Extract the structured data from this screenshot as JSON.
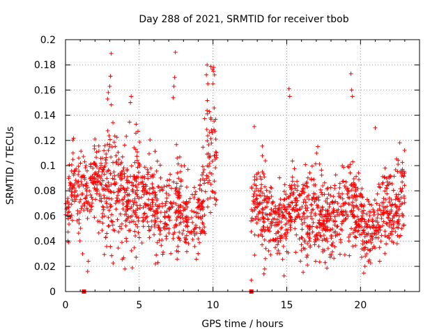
{
  "chart_data": {
    "type": "scatter",
    "title": "Day 288 of 2021, SRMTID for receiver tbob",
    "xlabel": "GPS time / hours",
    "ylabel": "SRMTID / TECUs",
    "xlim": [
      0,
      24
    ],
    "ylim": [
      0,
      0.2
    ],
    "grid": true,
    "marker_color": "#ff0000",
    "x_ticks": [
      {
        "value": 0,
        "label": "0"
      },
      {
        "value": 5,
        "label": "5"
      },
      {
        "value": 10,
        "label": "10"
      },
      {
        "value": 15,
        "label": "15"
      },
      {
        "value": 20,
        "label": "20"
      }
    ],
    "y_ticks": [
      {
        "value": 0,
        "label": "0"
      },
      {
        "value": 0.02,
        "label": "0.02"
      },
      {
        "value": 0.04,
        "label": "0.04"
      },
      {
        "value": 0.06,
        "label": "0.06"
      },
      {
        "value": 0.08,
        "label": "0.08"
      },
      {
        "value": 0.1,
        "label": "0.1"
      },
      {
        "value": 0.12,
        "label": "0.12"
      },
      {
        "value": 0.14,
        "label": "0.14"
      },
      {
        "value": 0.16,
        "label": "0.16"
      },
      {
        "value": 0.18,
        "label": "0.18"
      },
      {
        "value": 0.2,
        "label": "0.2"
      }
    ],
    "zero_markers": [
      {
        "x": 1.25,
        "y": 0
      },
      {
        "x": 12.6,
        "y": 0
      }
    ],
    "segments": [
      {
        "x_start": 0.0,
        "x_end": 10.25,
        "count": 900,
        "envelope": [
          [
            0.0,
            0.072,
            0.016
          ],
          [
            0.5,
            0.085,
            0.018
          ],
          [
            1.0,
            0.082,
            0.018
          ],
          [
            1.5,
            0.085,
            0.018
          ],
          [
            2.0,
            0.09,
            0.02
          ],
          [
            2.5,
            0.085,
            0.022
          ],
          [
            3.0,
            0.08,
            0.028
          ],
          [
            3.5,
            0.082,
            0.025
          ],
          [
            4.0,
            0.072,
            0.022
          ],
          [
            4.5,
            0.078,
            0.025
          ],
          [
            5.0,
            0.078,
            0.022
          ],
          [
            5.5,
            0.07,
            0.02
          ],
          [
            6.0,
            0.068,
            0.018
          ],
          [
            6.5,
            0.064,
            0.018
          ],
          [
            7.0,
            0.066,
            0.02
          ],
          [
            7.5,
            0.07,
            0.025
          ],
          [
            8.0,
            0.062,
            0.018
          ],
          [
            8.5,
            0.062,
            0.017
          ],
          [
            9.0,
            0.064,
            0.018
          ],
          [
            9.5,
            0.085,
            0.03
          ],
          [
            10.0,
            0.115,
            0.03
          ],
          [
            10.25,
            0.1,
            0.025
          ]
        ]
      },
      {
        "x_start": 12.55,
        "x_end": 23.0,
        "count": 950,
        "envelope": [
          [
            12.55,
            0.07,
            0.015
          ],
          [
            13.0,
            0.075,
            0.018
          ],
          [
            13.5,
            0.065,
            0.02
          ],
          [
            14.0,
            0.055,
            0.015
          ],
          [
            14.5,
            0.055,
            0.015
          ],
          [
            15.0,
            0.06,
            0.016
          ],
          [
            15.5,
            0.07,
            0.02
          ],
          [
            16.0,
            0.062,
            0.02
          ],
          [
            16.5,
            0.06,
            0.018
          ],
          [
            17.0,
            0.065,
            0.022
          ],
          [
            17.5,
            0.055,
            0.018
          ],
          [
            18.0,
            0.058,
            0.018
          ],
          [
            18.5,
            0.062,
            0.02
          ],
          [
            19.0,
            0.07,
            0.02
          ],
          [
            19.5,
            0.065,
            0.022
          ],
          [
            20.0,
            0.055,
            0.018
          ],
          [
            20.5,
            0.045,
            0.015
          ],
          [
            21.0,
            0.052,
            0.016
          ],
          [
            21.5,
            0.06,
            0.018
          ],
          [
            22.0,
            0.062,
            0.018
          ],
          [
            22.5,
            0.07,
            0.018
          ],
          [
            23.0,
            0.08,
            0.018
          ]
        ]
      }
    ],
    "outliers": [
      {
        "x": 3.1,
        "y": 0.189
      },
      {
        "x": 3.05,
        "y": 0.171
      },
      {
        "x": 3.0,
        "y": 0.163
      },
      {
        "x": 2.9,
        "y": 0.158
      },
      {
        "x": 2.85,
        "y": 0.153
      },
      {
        "x": 4.45,
        "y": 0.155
      },
      {
        "x": 4.4,
        "y": 0.15
      },
      {
        "x": 7.45,
        "y": 0.19
      },
      {
        "x": 7.4,
        "y": 0.17
      },
      {
        "x": 7.35,
        "y": 0.163
      },
      {
        "x": 7.3,
        "y": 0.154
      },
      {
        "x": 9.6,
        "y": 0.18
      },
      {
        "x": 9.55,
        "y": 0.172
      },
      {
        "x": 9.65,
        "y": 0.165
      },
      {
        "x": 10.05,
        "y": 0.178
      },
      {
        "x": 10.1,
        "y": 0.172
      },
      {
        "x": 10.0,
        "y": 0.165
      },
      {
        "x": 15.15,
        "y": 0.161
      },
      {
        "x": 15.2,
        "y": 0.155
      },
      {
        "x": 19.35,
        "y": 0.173
      },
      {
        "x": 19.4,
        "y": 0.16
      },
      {
        "x": 19.45,
        "y": 0.155
      },
      {
        "x": 21.0,
        "y": 0.13
      },
      {
        "x": 12.8,
        "y": 0.131
      },
      {
        "x": 1.5,
        "y": 0.016
      },
      {
        "x": 1.55,
        "y": 0.024
      },
      {
        "x": 12.6,
        "y": 0.009
      },
      {
        "x": 13.45,
        "y": 0.014
      },
      {
        "x": 13.5,
        "y": 0.018
      },
      {
        "x": 0.2,
        "y": 0.039
      },
      {
        "x": 6.1,
        "y": 0.022
      },
      {
        "x": 6.15,
        "y": 0.029
      },
      {
        "x": 16.4,
        "y": 0.021
      },
      {
        "x": 17.6,
        "y": 0.023
      },
      {
        "x": 20.3,
        "y": 0.02
      },
      {
        "x": 20.6,
        "y": 0.025
      },
      {
        "x": 21.3,
        "y": 0.024
      }
    ],
    "seed": 288
  }
}
